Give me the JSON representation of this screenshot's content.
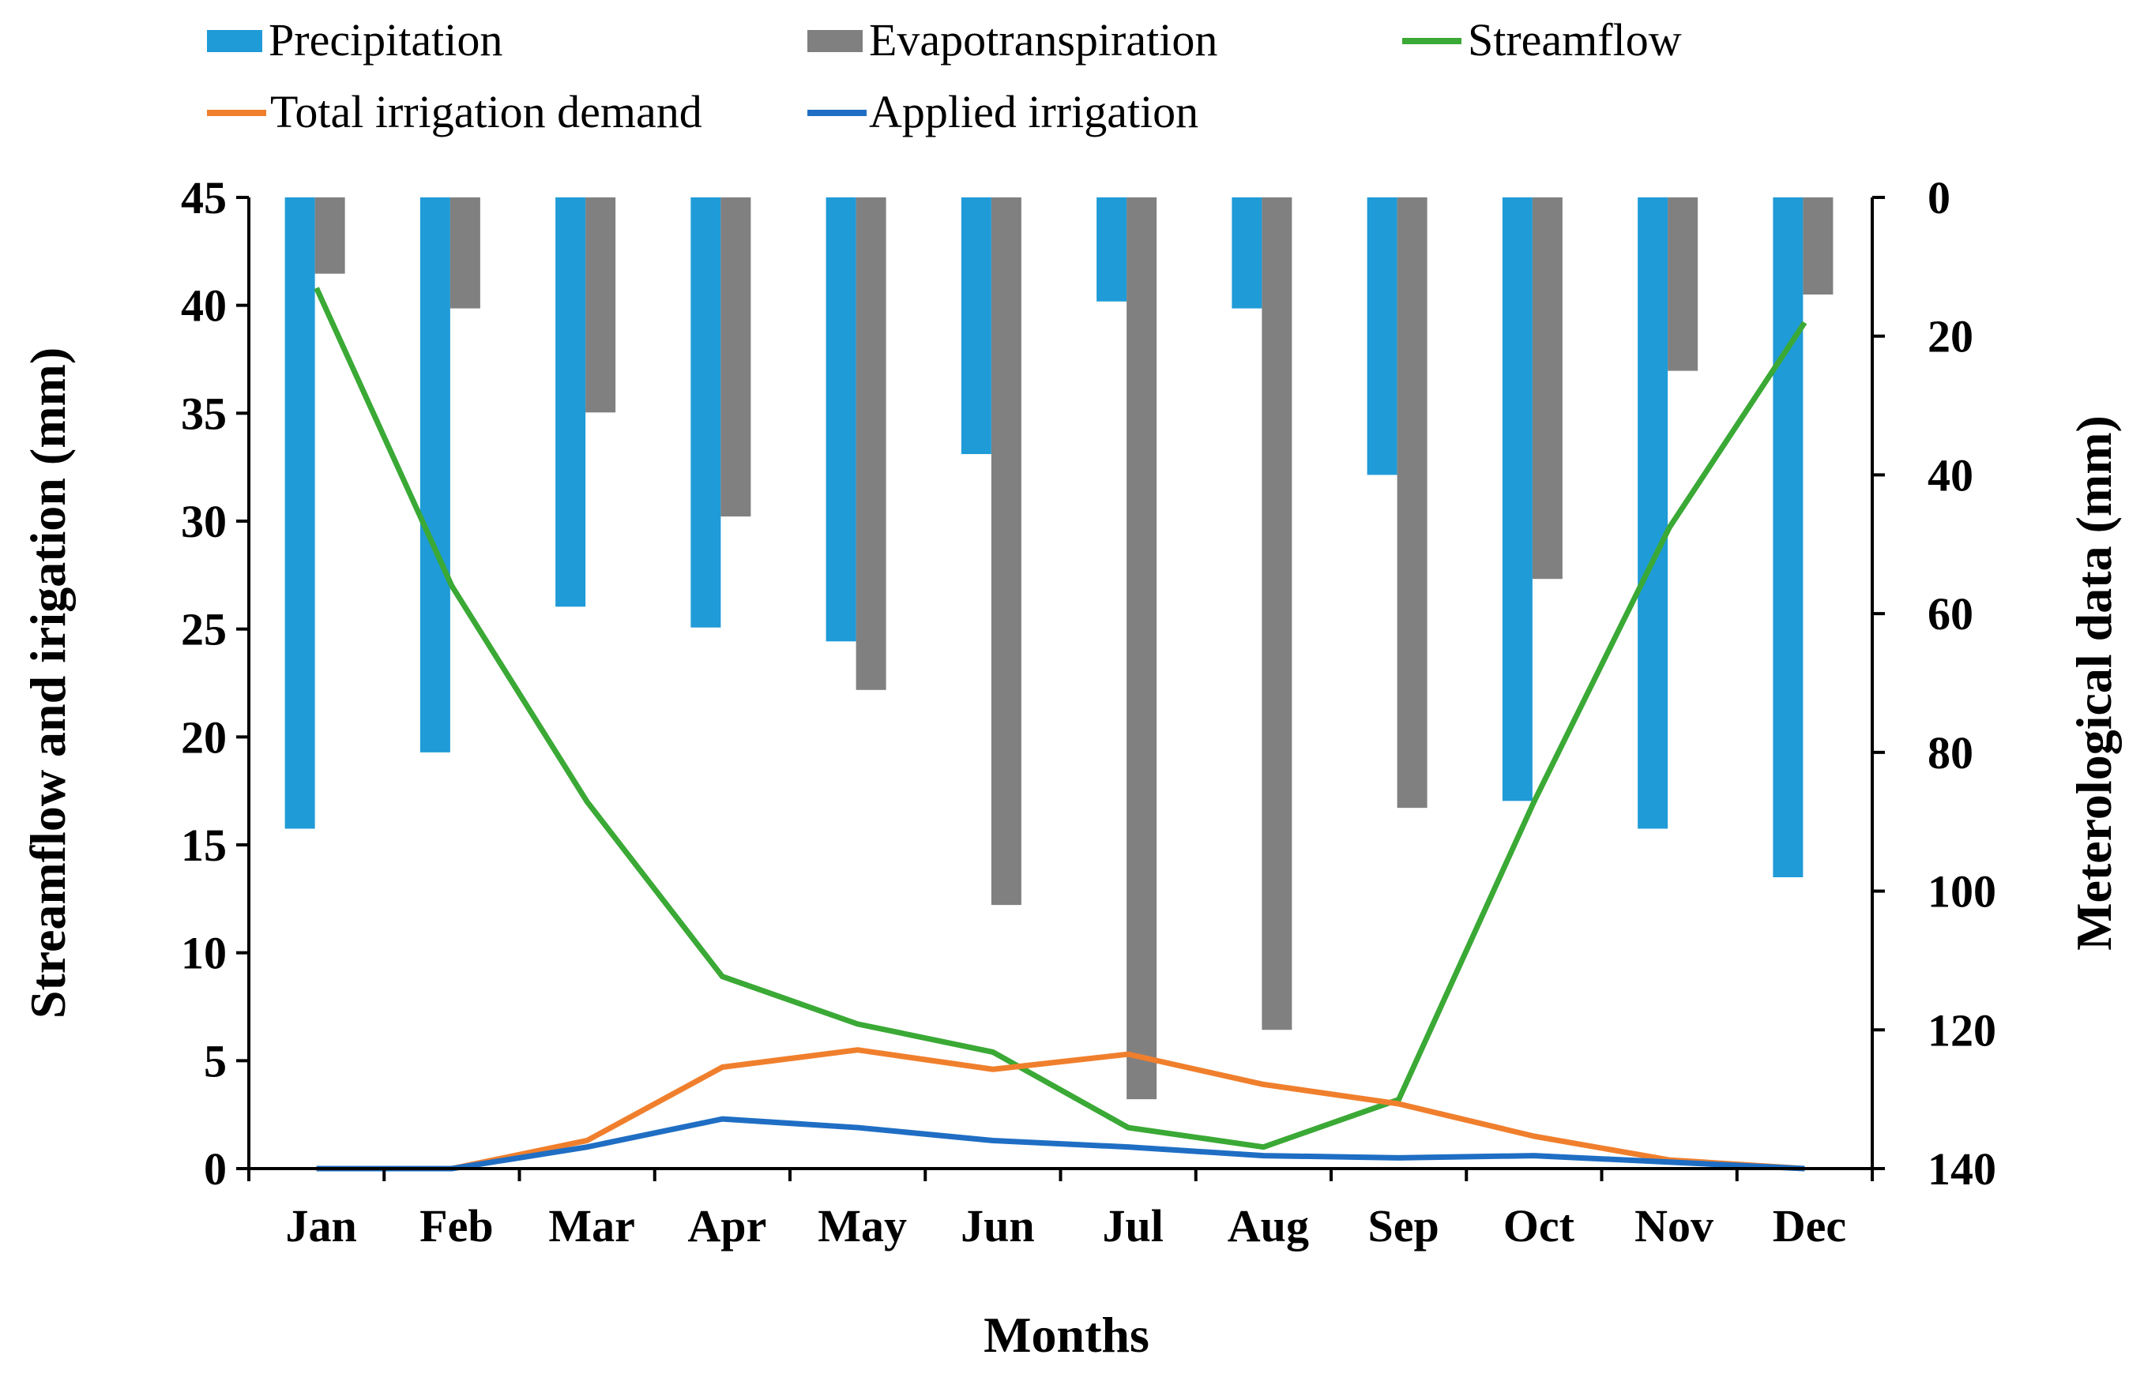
{
  "chart_data": {
    "type": "bar+line",
    "categories": [
      "Jan",
      "Feb",
      "Mar",
      "Apr",
      "May",
      "Jun",
      "Jul",
      "Aug",
      "Sep",
      "Oct",
      "Nov",
      "Dec"
    ],
    "xlabel": "Months",
    "ylabel_left": "Streamflow and irigation (mm)",
    "ylabel_right": "Meterological data (mm)",
    "left_axis": {
      "min": 0,
      "max": 45,
      "step": 5,
      "ticks": [
        "0",
        "5",
        "10",
        "15",
        "20",
        "25",
        "30",
        "35",
        "40",
        "45"
      ]
    },
    "right_axis": {
      "min": 0,
      "max": 140,
      "step": 20,
      "inverted": true,
      "ticks": [
        "0",
        "20",
        "40",
        "60",
        "80",
        "100",
        "120",
        "140"
      ]
    },
    "bar_series": [
      {
        "name": "Precipitation",
        "axis": "right",
        "color": "#1f9bd7",
        "values": [
          91,
          80,
          59,
          62,
          64,
          37,
          15,
          16,
          40,
          87,
          91,
          98
        ]
      },
      {
        "name": "Evapotranspiration",
        "axis": "right",
        "color": "#808080",
        "values": [
          11,
          16,
          31,
          46,
          71,
          102,
          130,
          120,
          88,
          55,
          25,
          14
        ]
      }
    ],
    "line_series": [
      {
        "name": "Streamflow",
        "axis": "left",
        "color": "#3aa935",
        "values": [
          40.8,
          27.0,
          17.0,
          8.9,
          6.7,
          5.4,
          1.9,
          1.0,
          3.2,
          17.0,
          29.7,
          39.2
        ]
      },
      {
        "name": "Total irrigation demand",
        "axis": "left",
        "color": "#f07f2d",
        "values": [
          0.0,
          0.0,
          1.3,
          4.7,
          5.5,
          4.6,
          5.3,
          3.9,
          3.0,
          1.5,
          0.4,
          0.0
        ]
      },
      {
        "name": "Applied irrigation",
        "axis": "left",
        "color": "#1f6ec4",
        "values": [
          0.0,
          0.0,
          1.0,
          2.3,
          1.9,
          1.3,
          1.0,
          0.6,
          0.5,
          0.6,
          0.3,
          0.0
        ]
      }
    ],
    "legend": [
      "Precipitation",
      "Evapotranspiration",
      "Streamflow",
      "Total irrigation demand",
      "Applied irrigation"
    ],
    "legend_position": "top"
  }
}
